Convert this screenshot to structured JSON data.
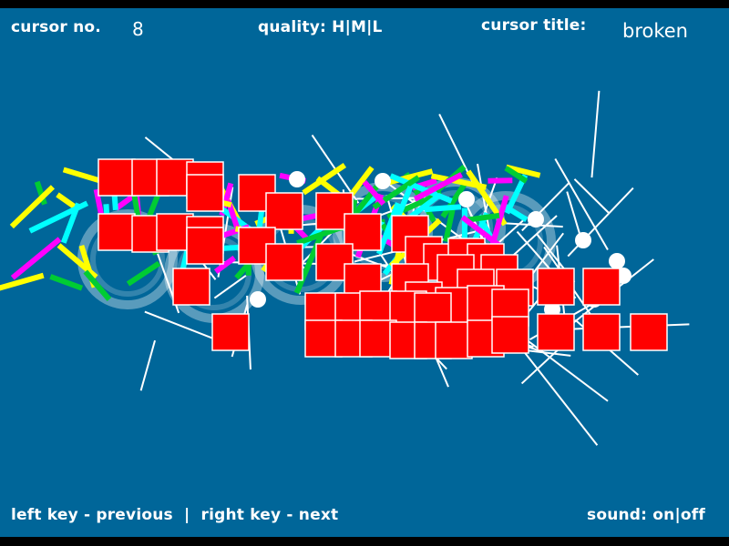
{
  "header": {
    "cursor_no_label": "cursor no.",
    "cursor_no_value": "8",
    "quality_label": "quality:",
    "quality_options": [
      "H",
      "M",
      "L"
    ],
    "separator": "|",
    "cursor_title_label": "cursor title:",
    "cursor_title_value": "broken"
  },
  "footer": {
    "left_key": "left key - previous",
    "separator": "|",
    "right_key": "right key - next",
    "sound_label": "sound:",
    "sound_options": [
      "on",
      "off"
    ]
  },
  "colors": {
    "background": "#006699",
    "squares": "#ff0000",
    "bars": [
      "#ffff00",
      "#00cc33",
      "#ff00ff",
      "#00ffff"
    ],
    "lines": "#ffffff"
  }
}
